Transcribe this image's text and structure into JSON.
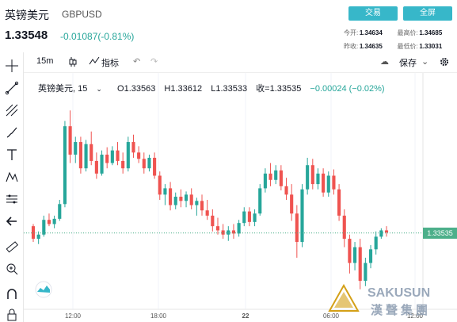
{
  "header": {
    "title": "英镑美元",
    "symbol": "GBPUSD",
    "price": "1.33548",
    "change": "-0.01087(-0.81%)",
    "trade_button": "交易",
    "full_button": "全屏",
    "stats": {
      "open_label": "今开:",
      "open": "1.34634",
      "high_label": "最高价:",
      "high": "1.34685",
      "prev_label": "昨收:",
      "prev": "1.34635",
      "low_label": "最低价:",
      "low": "1.33031"
    }
  },
  "toolbar": {
    "interval": "15m",
    "indicators": "指标",
    "save": "保存"
  },
  "legend": {
    "name": "英镑美元, 15",
    "open": "O1.33563",
    "high": "H1.33612",
    "low": "L1.33533",
    "close": "收=1.33535",
    "chg": "−0.00024 (−0.02%)"
  },
  "price_tag": "1.33535",
  "watermark_text": "SAKUSUN 漢聲集團",
  "colors": {
    "up": "#26a69a",
    "down": "#ef5350",
    "accent": "#37b7c9",
    "tag": "#4caf8a"
  },
  "chart_data": {
    "type": "candlestick",
    "x_ticks": [
      "12:00",
      "18:00",
      "22",
      "06:00",
      "12:00"
    ],
    "ylim": [
      1.329,
      1.348
    ],
    "last_price": 1.33535,
    "candles": [
      [
        1.336,
        1.3362,
        1.3345,
        1.3348
      ],
      [
        1.3348,
        1.3355,
        1.3343,
        1.3352
      ],
      [
        1.3352,
        1.337,
        1.335,
        1.3366
      ],
      [
        1.3366,
        1.3372,
        1.336,
        1.3362
      ],
      [
        1.3362,
        1.337,
        1.3358,
        1.3367
      ],
      [
        1.3367,
        1.3385,
        1.3365,
        1.3381
      ],
      [
        1.3381,
        1.346,
        1.3378,
        1.3455
      ],
      [
        1.3455,
        1.347,
        1.342,
        1.3428
      ],
      [
        1.3428,
        1.3445,
        1.342,
        1.344
      ],
      [
        1.344,
        1.3445,
        1.341,
        1.3415
      ],
      [
        1.3415,
        1.3442,
        1.3412,
        1.3438
      ],
      [
        1.3438,
        1.345,
        1.3418,
        1.3422
      ],
      [
        1.3422,
        1.343,
        1.3405,
        1.341
      ],
      [
        1.341,
        1.3432,
        1.3408,
        1.3428
      ],
      [
        1.3428,
        1.3435,
        1.3415,
        1.342
      ],
      [
        1.342,
        1.3436,
        1.3418,
        1.3432
      ],
      [
        1.3432,
        1.344,
        1.3418,
        1.3422
      ],
      [
        1.3422,
        1.343,
        1.341,
        1.3415
      ],
      [
        1.3415,
        1.3445,
        1.3412,
        1.344
      ],
      [
        1.344,
        1.3447,
        1.3425,
        1.343
      ],
      [
        1.343,
        1.3436,
        1.342,
        1.3424
      ],
      [
        1.3424,
        1.343,
        1.341,
        1.3415
      ],
      [
        1.3415,
        1.3428,
        1.3412,
        1.3425
      ],
      [
        1.3425,
        1.343,
        1.3405,
        1.3408
      ],
      [
        1.3408,
        1.3412,
        1.3385,
        1.339
      ],
      [
        1.339,
        1.34,
        1.338,
        1.3396
      ],
      [
        1.3396,
        1.3402,
        1.3375,
        1.338
      ],
      [
        1.338,
        1.3392,
        1.3376,
        1.3388
      ],
      [
        1.3388,
        1.3395,
        1.3378,
        1.3384
      ],
      [
        1.3384,
        1.3393,
        1.3378,
        1.339
      ],
      [
        1.339,
        1.3396,
        1.3376,
        1.338
      ],
      [
        1.338,
        1.3387,
        1.337,
        1.3384
      ],
      [
        1.3384,
        1.339,
        1.337,
        1.3375
      ],
      [
        1.3375,
        1.3385,
        1.3366,
        1.337
      ],
      [
        1.337,
        1.3376,
        1.3355,
        1.336
      ],
      [
        1.336,
        1.3368,
        1.3352,
        1.3356
      ],
      [
        1.3356,
        1.3362,
        1.3348,
        1.3352
      ],
      [
        1.3352,
        1.336,
        1.3346,
        1.3356
      ],
      [
        1.3356,
        1.3362,
        1.3348,
        1.3353
      ],
      [
        1.3353,
        1.3366,
        1.335,
        1.3363
      ],
      [
        1.3363,
        1.3378,
        1.336,
        1.3374
      ],
      [
        1.3374,
        1.3378,
        1.336,
        1.3364
      ],
      [
        1.3364,
        1.3376,
        1.336,
        1.3372
      ],
      [
        1.3372,
        1.34,
        1.337,
        1.3396
      ],
      [
        1.3396,
        1.3415,
        1.3392,
        1.341
      ],
      [
        1.341,
        1.342,
        1.3398,
        1.3404
      ],
      [
        1.3404,
        1.3418,
        1.34,
        1.3413
      ],
      [
        1.3413,
        1.3418,
        1.3394,
        1.3398
      ],
      [
        1.3398,
        1.3406,
        1.3385,
        1.339
      ],
      [
        1.339,
        1.34,
        1.3365,
        1.3372
      ],
      [
        1.3372,
        1.338,
        1.333,
        1.3345
      ],
      [
        1.3345,
        1.34,
        1.334,
        1.3395
      ],
      [
        1.3395,
        1.3425,
        1.339,
        1.3418
      ],
      [
        1.3418,
        1.3424,
        1.3395,
        1.34
      ],
      [
        1.34,
        1.3415,
        1.3395,
        1.341
      ],
      [
        1.341,
        1.3415,
        1.3388,
        1.3392
      ],
      [
        1.3392,
        1.3412,
        1.3388,
        1.3408
      ],
      [
        1.3408,
        1.3414,
        1.339,
        1.3395
      ],
      [
        1.3395,
        1.34,
        1.3365,
        1.337
      ],
      [
        1.337,
        1.3376,
        1.334,
        1.3348
      ],
      [
        1.3348,
        1.3352,
        1.3315,
        1.3325
      ],
      [
        1.3325,
        1.3345,
        1.3318,
        1.334
      ],
      [
        1.334,
        1.3348,
        1.33,
        1.3308
      ],
      [
        1.3308,
        1.333,
        1.3303,
        1.3325
      ],
      [
        1.3325,
        1.3342,
        1.332,
        1.3338
      ],
      [
        1.3338,
        1.3355,
        1.3333,
        1.335
      ],
      [
        1.335,
        1.3358,
        1.3348,
        1.3356
      ],
      [
        1.3356,
        1.336,
        1.335,
        1.3354
      ]
    ]
  }
}
